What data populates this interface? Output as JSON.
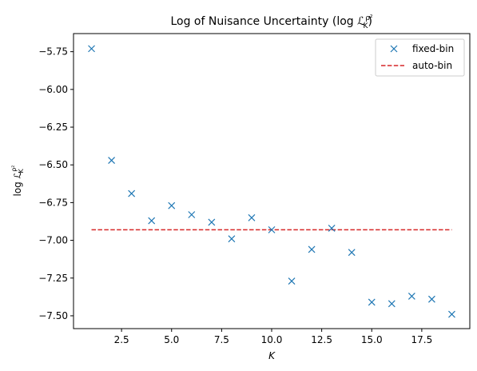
{
  "chart_data": {
    "type": "scatter",
    "title": "Log of Nuisance Uncertainty (log ℒ",
    "title_sup": "ρ²",
    "title_sub": "K",
    "title_close": ")",
    "xlabel": "K",
    "ylabel": "log ℒ",
    "ylabel_sup": "ρ²",
    "ylabel_sub": "K",
    "xlim": [
      0.1,
      19.9
    ],
    "ylim": [
      -7.585,
      -5.63
    ],
    "xticks": [
      2.5,
      5.0,
      7.5,
      10.0,
      12.5,
      15.0,
      17.5
    ],
    "xtick_labels": [
      "2.5",
      "5.0",
      "7.5",
      "10.0",
      "12.5",
      "15.0",
      "17.5"
    ],
    "yticks": [
      -5.75,
      -6.0,
      -6.25,
      -6.5,
      -6.75,
      -7.0,
      -7.25,
      -7.5
    ],
    "ytick_labels": [
      "−5.75",
      "−6.00",
      "−6.25",
      "−6.50",
      "−6.75",
      "−7.00",
      "−7.25",
      "−7.50"
    ],
    "grid": false,
    "legend_position": "top-right",
    "series": [
      {
        "name": "fixed-bin",
        "kind": "scatter",
        "marker": "x",
        "color": "#1f77b4",
        "x": [
          1,
          2,
          3,
          4,
          5,
          6,
          7,
          8,
          9,
          10,
          11,
          12,
          13,
          14,
          15,
          16,
          17,
          18,
          19
        ],
        "y": [
          -5.73,
          -6.47,
          -6.69,
          -6.87,
          -6.77,
          -6.83,
          -6.88,
          -6.99,
          -6.85,
          -6.93,
          -7.27,
          -7.06,
          -6.92,
          -7.08,
          -7.41,
          -7.42,
          -7.37,
          -7.39,
          -7.49
        ]
      },
      {
        "name": "auto-bin",
        "kind": "line",
        "dash": "dashed",
        "color": "#d62728",
        "x": [
          1,
          19
        ],
        "y": [
          -6.93,
          -6.93
        ]
      }
    ]
  }
}
